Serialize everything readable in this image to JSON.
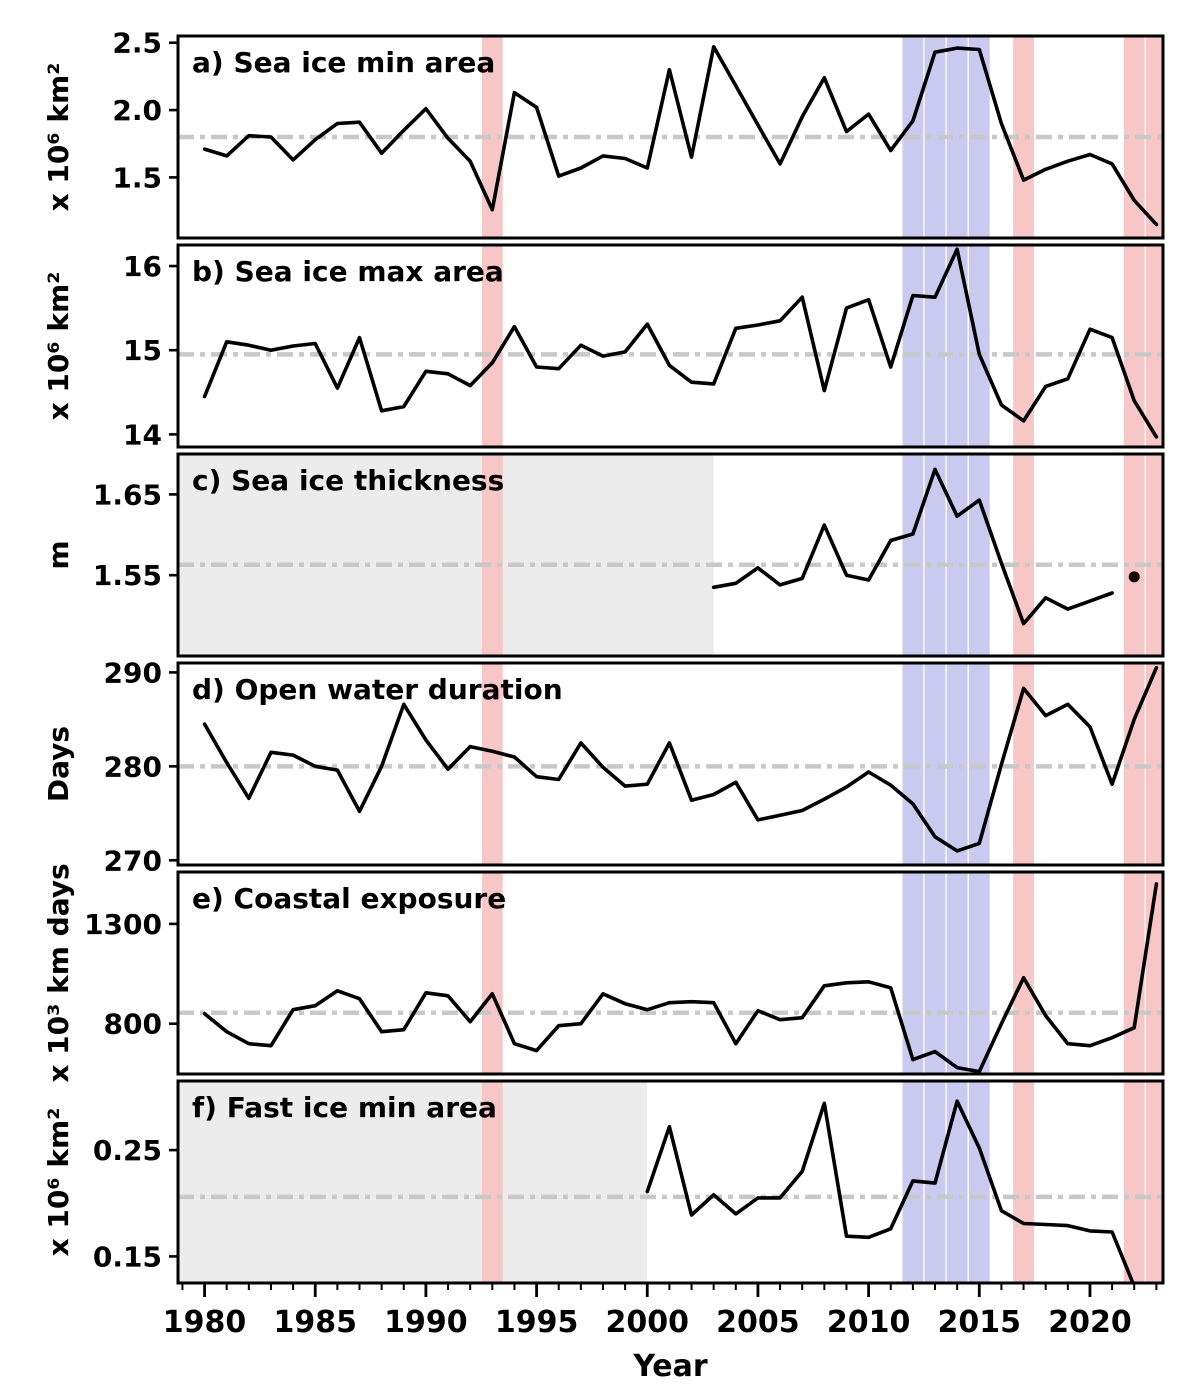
{
  "figure": {
    "description": "Six stacked time-series panels of Arctic sea ice indicators, 1980-2023",
    "xaxis_title": "Year"
  },
  "chart_data": {
    "type": "line",
    "x": {
      "label": "Year",
      "lim": [
        1978.8,
        2023.3
      ],
      "major_ticks": [
        1980,
        1985,
        1990,
        1995,
        2000,
        2005,
        2010,
        2015,
        2020
      ],
      "minor_tick_step": 1
    },
    "style": {
      "line_color": "#000000",
      "mean_line_color": "#c8c8c8",
      "red_band_color": "#f7c6c6",
      "blue_band_color": "#cacaf0",
      "no_data_color": "#ececec",
      "border_color": "#000000"
    },
    "shaded_events": {
      "red_years": [
        1993,
        2017,
        2022,
        2023
      ],
      "blue_years": [
        2012,
        2013,
        2014,
        2015
      ]
    },
    "panels": [
      {
        "id": "a",
        "title": "a) Sea ice min area",
        "ylabel": "x 10⁶ km²",
        "ylim": [
          1.05,
          2.55
        ],
        "yticks": [
          {
            "value": 1.5,
            "label": "1.5"
          },
          {
            "value": 2.0,
            "label": "2.0"
          },
          {
            "value": 2.5,
            "label": "2.5"
          }
        ],
        "mean": 1.8,
        "no_data_before": null,
        "year_start": 1980,
        "values": [
          1.71,
          1.66,
          1.81,
          1.8,
          1.63,
          1.78,
          1.9,
          1.91,
          1.68,
          1.85,
          2.01,
          1.79,
          1.62,
          1.26,
          2.13,
          2.02,
          1.51,
          1.57,
          1.66,
          1.64,
          1.57,
          2.3,
          1.65,
          2.47,
          2.18,
          1.89,
          1.6,
          1.95,
          2.24,
          1.84,
          1.97,
          1.7,
          1.92,
          2.43,
          2.46,
          2.45,
          1.9,
          1.48,
          1.56,
          1.62,
          1.67,
          1.6,
          1.33,
          1.15
        ]
      },
      {
        "id": "b",
        "title": "b) Sea ice max area",
        "ylabel": "x 10⁶ km²",
        "ylim": [
          13.85,
          16.25
        ],
        "yticks": [
          {
            "value": 14,
            "label": "14"
          },
          {
            "value": 15,
            "label": "15"
          },
          {
            "value": 16,
            "label": "16"
          }
        ],
        "mean": 14.95,
        "no_data_before": null,
        "year_start": 1980,
        "values": [
          14.45,
          15.1,
          15.06,
          15.0,
          15.05,
          15.08,
          14.55,
          15.15,
          14.28,
          14.33,
          14.75,
          14.72,
          14.58,
          14.85,
          15.28,
          14.8,
          14.78,
          15.06,
          14.93,
          14.98,
          15.31,
          14.82,
          14.62,
          14.6,
          15.26,
          15.3,
          15.35,
          15.63,
          14.52,
          15.5,
          15.6,
          14.8,
          15.65,
          15.63,
          16.2,
          14.95,
          14.35,
          14.16,
          14.57,
          14.66,
          15.25,
          15.15,
          14.4,
          13.97
        ]
      },
      {
        "id": "c",
        "title": "c) Sea ice thickness",
        "ylabel": "m",
        "ylim": [
          1.45,
          1.7
        ],
        "yticks": [
          {
            "value": 1.55,
            "label": "1.55"
          },
          {
            "value": 1.65,
            "label": "1.65"
          }
        ],
        "mean": 1.563,
        "no_data_before": 2003,
        "year_start": 2003,
        "values": [
          1.535,
          1.54,
          1.559,
          1.538,
          1.546,
          1.612,
          1.55,
          1.544,
          1.593,
          1.601,
          1.681,
          1.623,
          1.643,
          1.565,
          1.49,
          1.522,
          1.508,
          1.518,
          1.528
        ],
        "dot": {
          "year": 2022,
          "value": 1.548
        }
      },
      {
        "id": "d",
        "title": "d) Open water duration",
        "ylabel": "Days",
        "ylim": [
          269.5,
          291.0
        ],
        "yticks": [
          {
            "value": 270,
            "label": "270"
          },
          {
            "value": 280,
            "label": "280"
          },
          {
            "value": 290,
            "label": "290"
          }
        ],
        "mean": 280.0,
        "no_data_before": null,
        "year_start": 1980,
        "values": [
          284.5,
          280.4,
          276.6,
          281.5,
          281.2,
          280.0,
          279.6,
          275.2,
          280.0,
          286.6,
          282.8,
          279.7,
          282.1,
          281.6,
          281.0,
          278.9,
          278.6,
          282.5,
          279.9,
          277.9,
          278.1,
          282.5,
          276.4,
          277.0,
          278.3,
          274.3,
          274.8,
          275.3,
          276.5,
          277.8,
          279.4,
          278.0,
          276.0,
          272.5,
          271.0,
          271.8,
          280.2,
          288.3,
          285.4,
          286.6,
          284.2,
          278.1,
          285.0,
          290.5
        ]
      },
      {
        "id": "e",
        "title": "e) Coastal exposure",
        "ylabel": "x 10³ km days",
        "ylim": [
          548,
          1560
        ],
        "yticks": [
          {
            "value": 800,
            "label": "800"
          },
          {
            "value": 1300,
            "label": "1300"
          }
        ],
        "mean": 855,
        "no_data_before": null,
        "year_start": 1980,
        "values": [
          850,
          760,
          700,
          690,
          870,
          890,
          965,
          925,
          760,
          770,
          955,
          940,
          810,
          950,
          700,
          665,
          790,
          800,
          950,
          900,
          870,
          905,
          910,
          905,
          700,
          865,
          820,
          830,
          990,
          1005,
          1010,
          980,
          620,
          660,
          580,
          560,
          800,
          1030,
          840,
          700,
          690,
          730,
          780,
          1500
        ]
      },
      {
        "id": "f",
        "title": "f) Fast ice min area",
        "ylabel": "x 10⁶ km²",
        "ylim": [
          0.125,
          0.315
        ],
        "yticks": [
          {
            "value": 0.15,
            "label": "0.15"
          },
          {
            "value": 0.25,
            "label": "0.25"
          }
        ],
        "mean": 0.206,
        "no_data_before": 2000,
        "year_start": 2000,
        "values": [
          0.211,
          0.272,
          0.189,
          0.208,
          0.19,
          0.205,
          0.205,
          0.23,
          0.294,
          0.169,
          0.168,
          0.176,
          0.221,
          0.219,
          0.296,
          0.252,
          0.193,
          0.181,
          0.18,
          0.179,
          0.174,
          0.173,
          0.122
        ]
      }
    ]
  }
}
